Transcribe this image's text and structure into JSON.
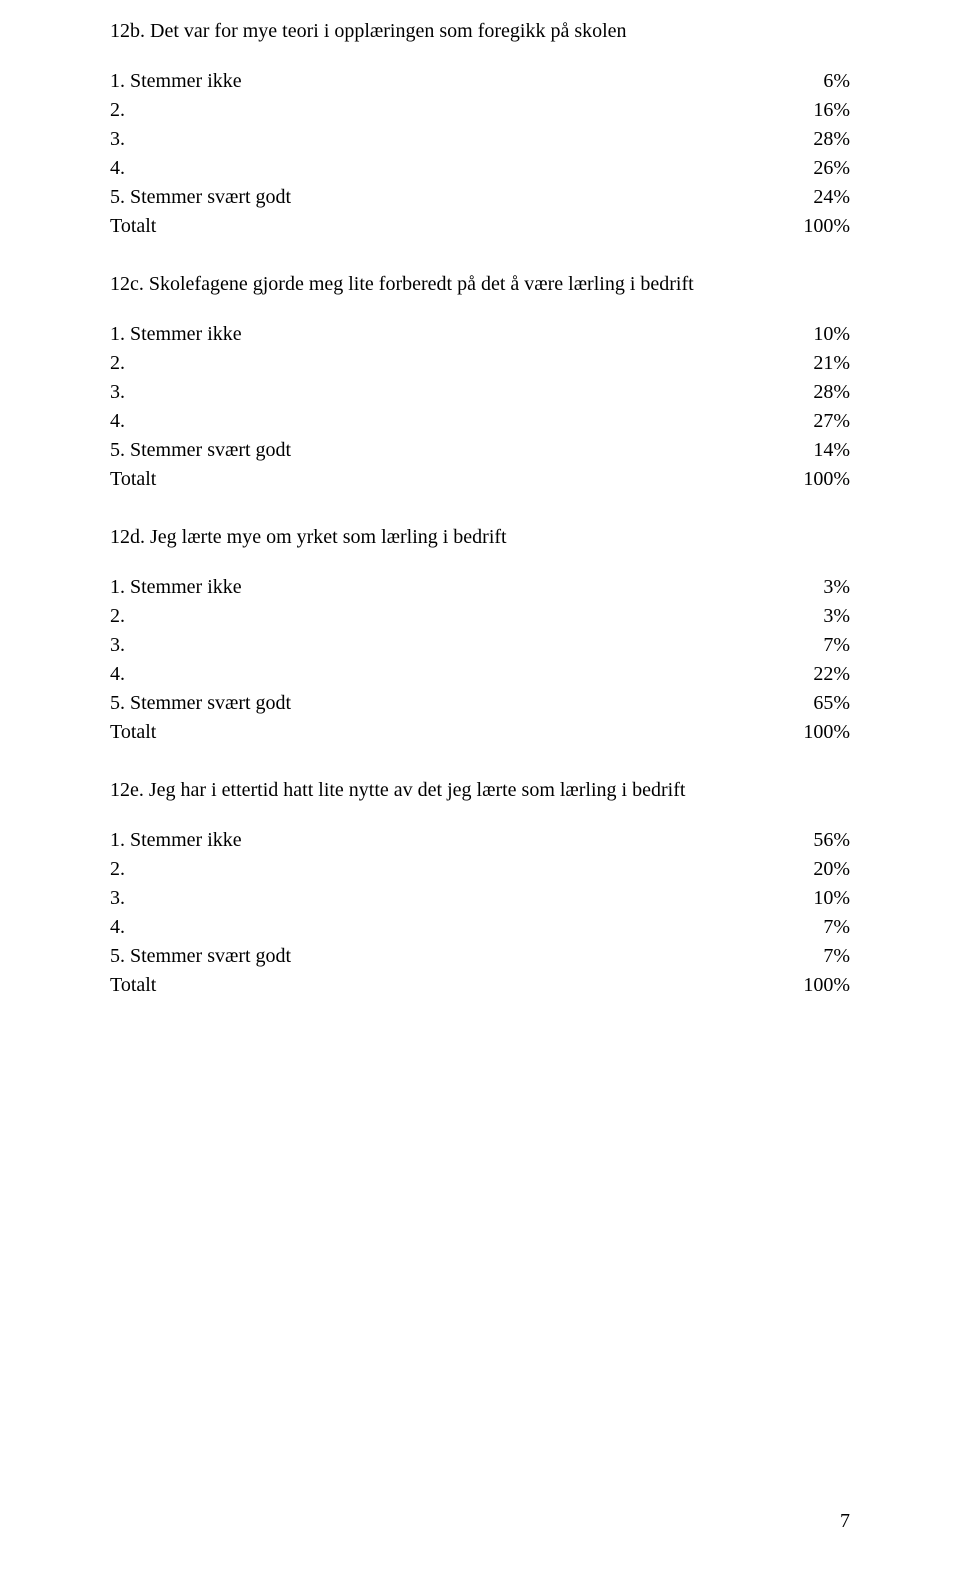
{
  "text_color": "#000000",
  "background_color": "#ffffff",
  "font_family": "Garamond",
  "base_fontsize": 20,
  "page_number": "7",
  "questions": [
    {
      "id": "12b",
      "title": "12b. Det var for mye teori i opplæringen som foregikk på skolen",
      "rows": [
        {
          "label": "1. Stemmer ikke",
          "value": "6%"
        },
        {
          "label": "2.",
          "value": "16%"
        },
        {
          "label": "3.",
          "value": "28%"
        },
        {
          "label": "4.",
          "value": "26%"
        },
        {
          "label": "5. Stemmer svært godt",
          "value": "24%"
        },
        {
          "label": "Totalt",
          "value": "100%"
        }
      ]
    },
    {
      "id": "12c",
      "title": "12c. Skolefagene gjorde meg lite forberedt på det å være lærling i bedrift",
      "rows": [
        {
          "label": "1. Stemmer ikke",
          "value": "10%"
        },
        {
          "label": "2.",
          "value": "21%"
        },
        {
          "label": "3.",
          "value": "28%"
        },
        {
          "label": "4.",
          "value": "27%"
        },
        {
          "label": "5. Stemmer svært godt",
          "value": "14%"
        },
        {
          "label": "Totalt",
          "value": "100%"
        }
      ]
    },
    {
      "id": "12d",
      "title": "12d. Jeg lærte mye om yrket som lærling i bedrift",
      "rows": [
        {
          "label": "1. Stemmer ikke",
          "value": "3%"
        },
        {
          "label": "2.",
          "value": "3%"
        },
        {
          "label": "3.",
          "value": "7%"
        },
        {
          "label": "4.",
          "value": "22%"
        },
        {
          "label": "5. Stemmer svært godt",
          "value": "65%"
        },
        {
          "label": "Totalt",
          "value": "100%"
        }
      ]
    },
    {
      "id": "12e",
      "title": "12e. Jeg har i ettertid hatt lite nytte av det jeg lærte som lærling i bedrift",
      "rows": [
        {
          "label": "1. Stemmer ikke",
          "value": "56%"
        },
        {
          "label": "2.",
          "value": "20%"
        },
        {
          "label": "3.",
          "value": "10%"
        },
        {
          "label": "4.",
          "value": "7%"
        },
        {
          "label": "5. Stemmer svært godt",
          "value": "7%"
        },
        {
          "label": "Totalt",
          "value": "100%"
        }
      ]
    }
  ]
}
